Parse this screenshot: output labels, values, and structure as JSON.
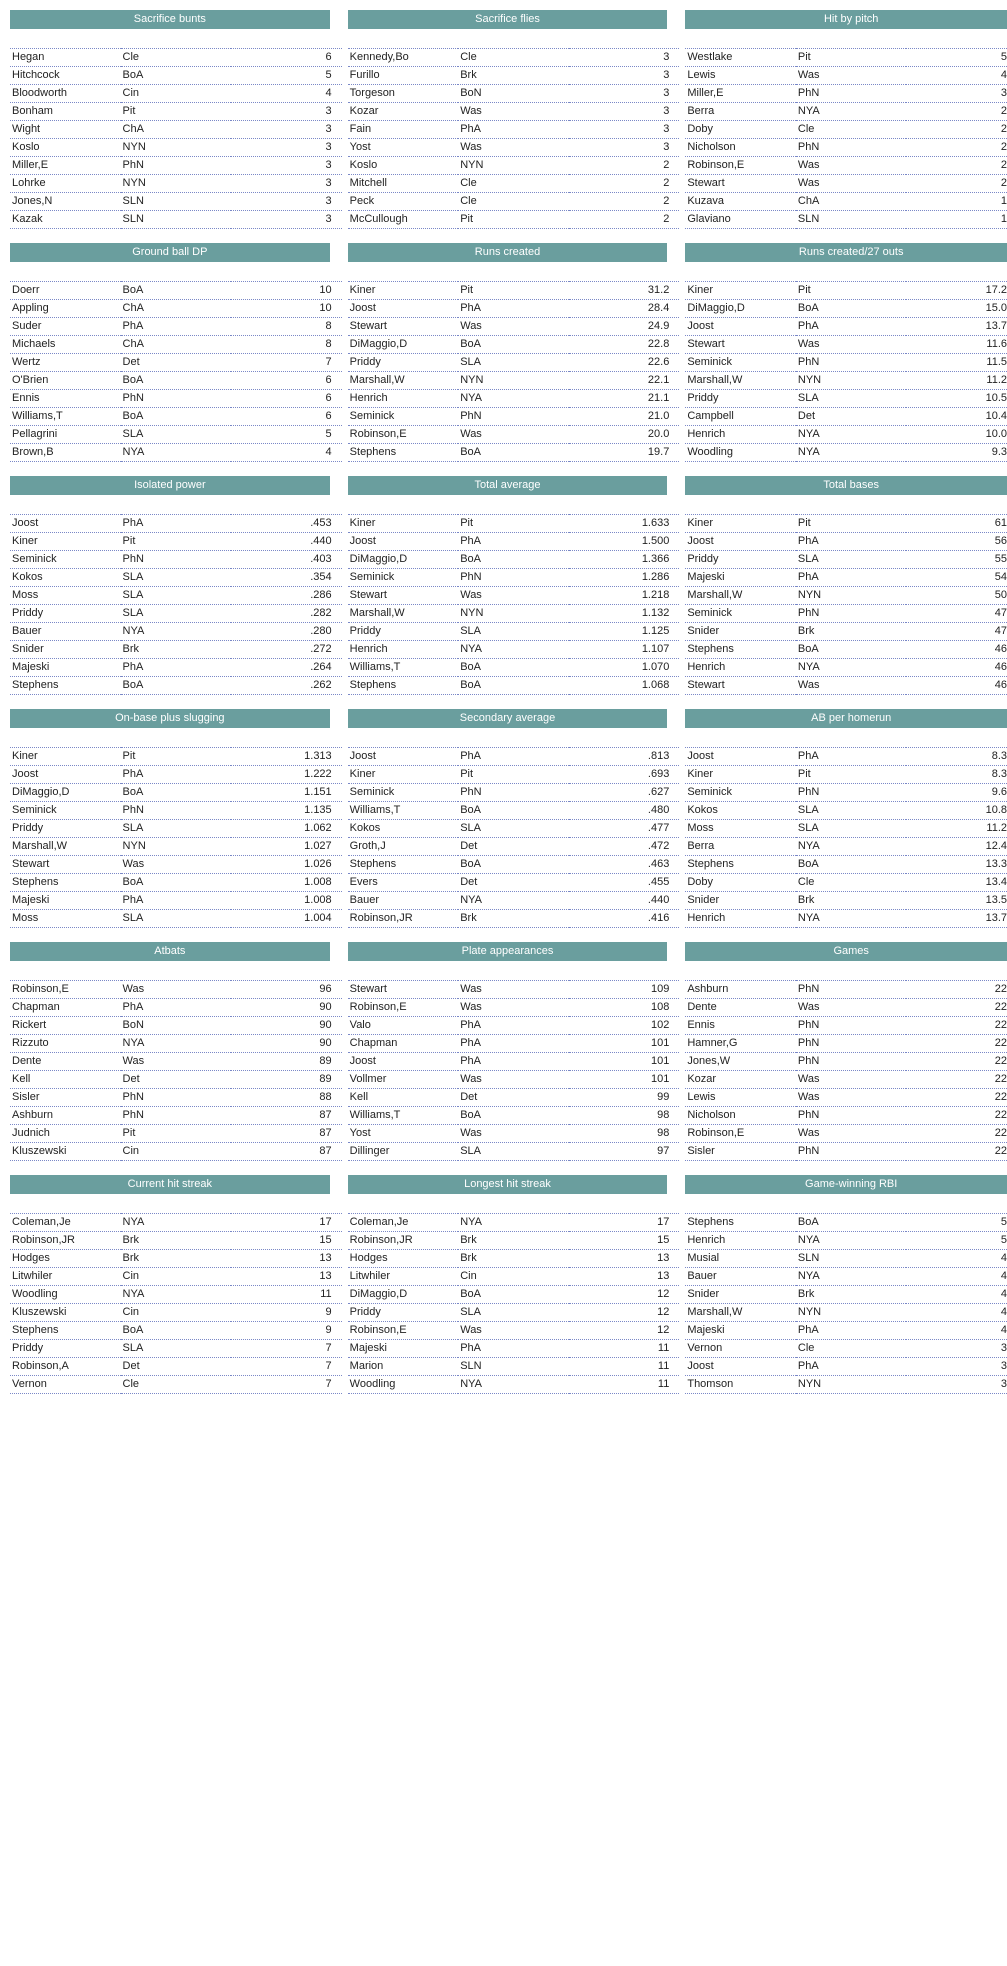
{
  "colors": {
    "header_bg": "#6a9e9e",
    "header_text": "#ffffff",
    "dotted_line": "#7a88c7",
    "body_text": "#222222",
    "background": "#ffffff"
  },
  "layout": {
    "columns_per_row": 3,
    "rows_per_table": 10
  },
  "groups": [
    [
      {
        "title": "Sacrifice bunts",
        "rows": [
          [
            "Hegan",
            "Cle",
            "6"
          ],
          [
            "Hitchcock",
            "BoA",
            "5"
          ],
          [
            "Bloodworth",
            "Cin",
            "4"
          ],
          [
            "Bonham",
            "Pit",
            "3"
          ],
          [
            "Wight",
            "ChA",
            "3"
          ],
          [
            "Koslo",
            "NYN",
            "3"
          ],
          [
            "Miller,E",
            "PhN",
            "3"
          ],
          [
            "Lohrke",
            "NYN",
            "3"
          ],
          [
            "Jones,N",
            "SLN",
            "3"
          ],
          [
            "Kazak",
            "SLN",
            "3"
          ]
        ]
      },
      {
        "title": "Sacrifice flies",
        "rows": [
          [
            "Kennedy,Bo",
            "Cle",
            "3"
          ],
          [
            "Furillo",
            "Brk",
            "3"
          ],
          [
            "Torgeson",
            "BoN",
            "3"
          ],
          [
            "Kozar",
            "Was",
            "3"
          ],
          [
            "Fain",
            "PhA",
            "3"
          ],
          [
            "Yost",
            "Was",
            "3"
          ],
          [
            "Koslo",
            "NYN",
            "2"
          ],
          [
            "Mitchell",
            "Cle",
            "2"
          ],
          [
            "Peck",
            "Cle",
            "2"
          ],
          [
            "McCullough",
            "Pit",
            "2"
          ]
        ]
      },
      {
        "title": "Hit by pitch",
        "rows": [
          [
            "Westlake",
            "Pit",
            "5"
          ],
          [
            "Lewis",
            "Was",
            "4"
          ],
          [
            "Miller,E",
            "PhN",
            "3"
          ],
          [
            "Berra",
            "NYA",
            "2"
          ],
          [
            "Doby",
            "Cle",
            "2"
          ],
          [
            "Nicholson",
            "PhN",
            "2"
          ],
          [
            "Robinson,E",
            "Was",
            "2"
          ],
          [
            "Stewart",
            "Was",
            "2"
          ],
          [
            "Kuzava",
            "ChA",
            "1"
          ],
          [
            "Glaviano",
            "SLN",
            "1"
          ]
        ]
      }
    ],
    [
      {
        "title": "Ground ball DP",
        "rows": [
          [
            "Doerr",
            "BoA",
            "10"
          ],
          [
            "Appling",
            "ChA",
            "10"
          ],
          [
            "Suder",
            "PhA",
            "8"
          ],
          [
            "Michaels",
            "ChA",
            "8"
          ],
          [
            "Wertz",
            "Det",
            "7"
          ],
          [
            "O'Brien",
            "BoA",
            "6"
          ],
          [
            "Ennis",
            "PhN",
            "6"
          ],
          [
            "Williams,T",
            "BoA",
            "6"
          ],
          [
            "Pellagrini",
            "SLA",
            "5"
          ],
          [
            "Brown,B",
            "NYA",
            "4"
          ]
        ]
      },
      {
        "title": "Runs created",
        "rows": [
          [
            "Kiner",
            "Pit",
            "31.2"
          ],
          [
            "Joost",
            "PhA",
            "28.4"
          ],
          [
            "Stewart",
            "Was",
            "24.9"
          ],
          [
            "DiMaggio,D",
            "BoA",
            "22.8"
          ],
          [
            "Priddy",
            "SLA",
            "22.6"
          ],
          [
            "Marshall,W",
            "NYN",
            "22.1"
          ],
          [
            "Henrich",
            "NYA",
            "21.1"
          ],
          [
            "Seminick",
            "PhN",
            "21.0"
          ],
          [
            "Robinson,E",
            "Was",
            "20.0"
          ],
          [
            "Stephens",
            "BoA",
            "19.7"
          ]
        ]
      },
      {
        "title": "Runs created/27 outs",
        "rows": [
          [
            "Kiner",
            "Pit",
            "17.2"
          ],
          [
            "DiMaggio,D",
            "BoA",
            "15.0"
          ],
          [
            "Joost",
            "PhA",
            "13.7"
          ],
          [
            "Stewart",
            "Was",
            "11.6"
          ],
          [
            "Seminick",
            "PhN",
            "11.5"
          ],
          [
            "Marshall,W",
            "NYN",
            "11.2"
          ],
          [
            "Priddy",
            "SLA",
            "10.5"
          ],
          [
            "Campbell",
            "Det",
            "10.4"
          ],
          [
            "Henrich",
            "NYA",
            "10.0"
          ],
          [
            "Woodling",
            "NYA",
            "9.3"
          ]
        ]
      }
    ],
    [
      {
        "title": "Isolated power",
        "rows": [
          [
            "Joost",
            "PhA",
            ".453"
          ],
          [
            "Kiner",
            "Pit",
            ".440"
          ],
          [
            "Seminick",
            "PhN",
            ".403"
          ],
          [
            "Kokos",
            "SLA",
            ".354"
          ],
          [
            "Moss",
            "SLA",
            ".286"
          ],
          [
            "Priddy",
            "SLA",
            ".282"
          ],
          [
            "Bauer",
            "NYA",
            ".280"
          ],
          [
            "Snider",
            "Brk",
            ".272"
          ],
          [
            "Majeski",
            "PhA",
            ".264"
          ],
          [
            "Stephens",
            "BoA",
            ".262"
          ]
        ]
      },
      {
        "title": "Total average",
        "rows": [
          [
            "Kiner",
            "Pit",
            "1.633"
          ],
          [
            "Joost",
            "PhA",
            "1.500"
          ],
          [
            "DiMaggio,D",
            "BoA",
            "1.366"
          ],
          [
            "Seminick",
            "PhN",
            "1.286"
          ],
          [
            "Stewart",
            "Was",
            "1.218"
          ],
          [
            "Marshall,W",
            "NYN",
            "1.132"
          ],
          [
            "Priddy",
            "SLA",
            "1.125"
          ],
          [
            "Henrich",
            "NYA",
            "1.107"
          ],
          [
            "Williams,T",
            "BoA",
            "1.070"
          ],
          [
            "Stephens",
            "BoA",
            "1.068"
          ]
        ]
      },
      {
        "title": "Total bases",
        "rows": [
          [
            "Kiner",
            "Pit",
            "61"
          ],
          [
            "Joost",
            "PhA",
            "56"
          ],
          [
            "Priddy",
            "SLA",
            "55"
          ],
          [
            "Majeski",
            "PhA",
            "54"
          ],
          [
            "Marshall,W",
            "NYN",
            "50"
          ],
          [
            "Seminick",
            "PhN",
            "47"
          ],
          [
            "Snider",
            "Brk",
            "47"
          ],
          [
            "Stephens",
            "BoA",
            "46"
          ],
          [
            "Henrich",
            "NYA",
            "46"
          ],
          [
            "Stewart",
            "Was",
            "46"
          ]
        ]
      }
    ],
    [
      {
        "title": "On-base plus slugging",
        "rows": [
          [
            "Kiner",
            "Pit",
            "1.313"
          ],
          [
            "Joost",
            "PhA",
            "1.222"
          ],
          [
            "DiMaggio,D",
            "BoA",
            "1.151"
          ],
          [
            "Seminick",
            "PhN",
            "1.135"
          ],
          [
            "Priddy",
            "SLA",
            "1.062"
          ],
          [
            "Marshall,W",
            "NYN",
            "1.027"
          ],
          [
            "Stewart",
            "Was",
            "1.026"
          ],
          [
            "Stephens",
            "BoA",
            "1.008"
          ],
          [
            "Majeski",
            "PhA",
            "1.008"
          ],
          [
            "Moss",
            "SLA",
            "1.004"
          ]
        ]
      },
      {
        "title": "Secondary average",
        "rows": [
          [
            "Joost",
            "PhA",
            ".813"
          ],
          [
            "Kiner",
            "Pit",
            ".693"
          ],
          [
            "Seminick",
            "PhN",
            ".627"
          ],
          [
            "Williams,T",
            "BoA",
            ".480"
          ],
          [
            "Kokos",
            "SLA",
            ".477"
          ],
          [
            "Groth,J",
            "Det",
            ".472"
          ],
          [
            "Stephens",
            "BoA",
            ".463"
          ],
          [
            "Evers",
            "Det",
            ".455"
          ],
          [
            "Bauer",
            "NYA",
            ".440"
          ],
          [
            "Robinson,JR",
            "Brk",
            ".416"
          ]
        ]
      },
      {
        "title": "AB per homerun",
        "rows": [
          [
            "Joost",
            "PhA",
            "8.3"
          ],
          [
            "Kiner",
            "Pit",
            "8.3"
          ],
          [
            "Seminick",
            "PhN",
            "9.6"
          ],
          [
            "Kokos",
            "SLA",
            "10.8"
          ],
          [
            "Moss",
            "SLA",
            "11.2"
          ],
          [
            "Berra",
            "NYA",
            "12.4"
          ],
          [
            "Stephens",
            "BoA",
            "13.3"
          ],
          [
            "Doby",
            "Cle",
            "13.4"
          ],
          [
            "Snider",
            "Brk",
            "13.5"
          ],
          [
            "Henrich",
            "NYA",
            "13.7"
          ]
        ]
      }
    ],
    [
      {
        "title": "Atbats",
        "rows": [
          [
            "Robinson,E",
            "Was",
            "96"
          ],
          [
            "Chapman",
            "PhA",
            "90"
          ],
          [
            "Rickert",
            "BoN",
            "90"
          ],
          [
            "Rizzuto",
            "NYA",
            "90"
          ],
          [
            "Dente",
            "Was",
            "89"
          ],
          [
            "Kell",
            "Det",
            "89"
          ],
          [
            "Sisler",
            "PhN",
            "88"
          ],
          [
            "Ashburn",
            "PhN",
            "87"
          ],
          [
            "Judnich",
            "Pit",
            "87"
          ],
          [
            "Kluszewski",
            "Cin",
            "87"
          ]
        ]
      },
      {
        "title": "Plate appearances",
        "rows": [
          [
            "Stewart",
            "Was",
            "109"
          ],
          [
            "Robinson,E",
            "Was",
            "108"
          ],
          [
            "Valo",
            "PhA",
            "102"
          ],
          [
            "Chapman",
            "PhA",
            "101"
          ],
          [
            "Joost",
            "PhA",
            "101"
          ],
          [
            "Vollmer",
            "Was",
            "101"
          ],
          [
            "Kell",
            "Det",
            "99"
          ],
          [
            "Williams,T",
            "BoA",
            "98"
          ],
          [
            "Yost",
            "Was",
            "98"
          ],
          [
            "Dillinger",
            "SLA",
            "97"
          ]
        ]
      },
      {
        "title": "Games",
        "rows": [
          [
            "Ashburn",
            "PhN",
            "22"
          ],
          [
            "Dente",
            "Was",
            "22"
          ],
          [
            "Ennis",
            "PhN",
            "22"
          ],
          [
            "Hamner,G",
            "PhN",
            "22"
          ],
          [
            "Jones,W",
            "PhN",
            "22"
          ],
          [
            "Kozar",
            "Was",
            "22"
          ],
          [
            "Lewis",
            "Was",
            "22"
          ],
          [
            "Nicholson",
            "PhN",
            "22"
          ],
          [
            "Robinson,E",
            "Was",
            "22"
          ],
          [
            "Sisler",
            "PhN",
            "22"
          ]
        ]
      }
    ],
    [
      {
        "title": "Current hit streak",
        "rows": [
          [
            "Coleman,Je",
            "NYA",
            "17"
          ],
          [
            "Robinson,JR",
            "Brk",
            "15"
          ],
          [
            "Hodges",
            "Brk",
            "13"
          ],
          [
            "Litwhiler",
            "Cin",
            "13"
          ],
          [
            "Woodling",
            "NYA",
            "11"
          ],
          [
            "Kluszewski",
            "Cin",
            "9"
          ],
          [
            "Stephens",
            "BoA",
            "9"
          ],
          [
            "Priddy",
            "SLA",
            "7"
          ],
          [
            "Robinson,A",
            "Det",
            "7"
          ],
          [
            "Vernon",
            "Cle",
            "7"
          ]
        ]
      },
      {
        "title": "Longest hit streak",
        "rows": [
          [
            "Coleman,Je",
            "NYA",
            "17"
          ],
          [
            "Robinson,JR",
            "Brk",
            "15"
          ],
          [
            "Hodges",
            "Brk",
            "13"
          ],
          [
            "Litwhiler",
            "Cin",
            "13"
          ],
          [
            "DiMaggio,D",
            "BoA",
            "12"
          ],
          [
            "Priddy",
            "SLA",
            "12"
          ],
          [
            "Robinson,E",
            "Was",
            "12"
          ],
          [
            "Majeski",
            "PhA",
            "11"
          ],
          [
            "Marion",
            "SLN",
            "11"
          ],
          [
            "Woodling",
            "NYA",
            "11"
          ]
        ]
      },
      {
        "title": "Game-winning RBI",
        "rows": [
          [
            "Stephens",
            "BoA",
            "5"
          ],
          [
            "Henrich",
            "NYA",
            "5"
          ],
          [
            "Musial",
            "SLN",
            "4"
          ],
          [
            "Bauer",
            "NYA",
            "4"
          ],
          [
            "Snider",
            "Brk",
            "4"
          ],
          [
            "Marshall,W",
            "NYN",
            "4"
          ],
          [
            "Majeski",
            "PhA",
            "4"
          ],
          [
            "Vernon",
            "Cle",
            "3"
          ],
          [
            "Joost",
            "PhA",
            "3"
          ],
          [
            "Thomson",
            "NYN",
            "3"
          ]
        ]
      }
    ]
  ]
}
